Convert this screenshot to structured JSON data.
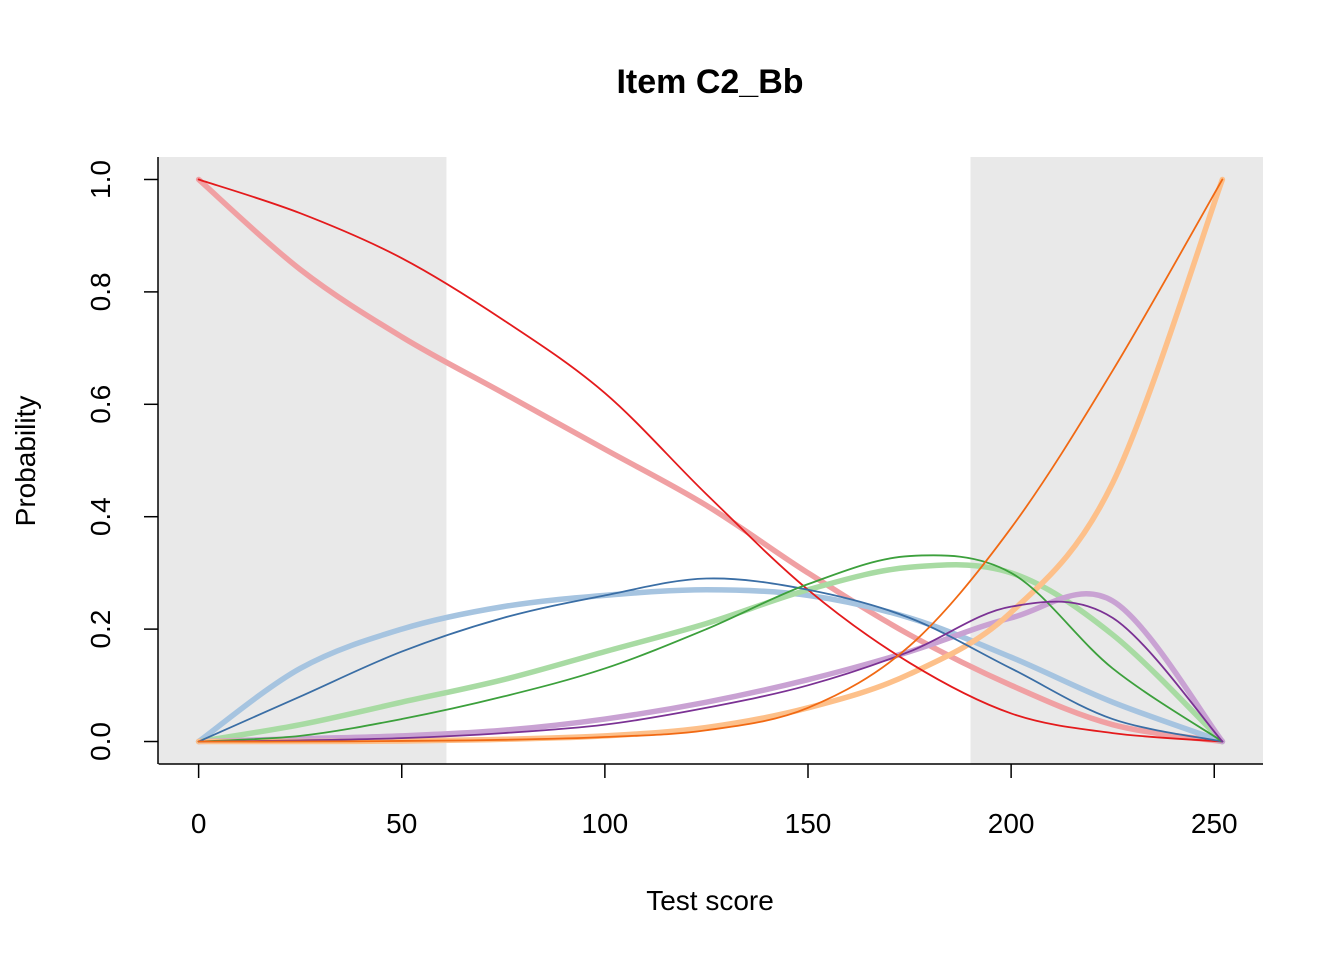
{
  "chart_data": {
    "type": "line",
    "title": "Item C2_Bb",
    "xlabel": "Test score",
    "ylabel": "Probability",
    "xlim": [
      -10,
      262
    ],
    "ylim": [
      -0.04,
      1.04
    ],
    "x_ticks": [
      0,
      50,
      100,
      150,
      200,
      250
    ],
    "y_ticks": [
      0.0,
      0.2,
      0.4,
      0.6,
      0.8,
      1.0
    ],
    "x_tick_labels": [
      "0",
      "50",
      "100",
      "150",
      "200",
      "250"
    ],
    "y_tick_labels": [
      "0.0",
      "0.2",
      "0.4",
      "0.6",
      "0.8",
      "1.0"
    ],
    "grid": false,
    "legend": "none",
    "shaded_regions": [
      {
        "x_range": [
          -10,
          61
        ],
        "color": "#e9e9e9"
      },
      {
        "x_range": [
          190,
          262
        ],
        "color": "#e9e9e9"
      }
    ],
    "x": [
      0,
      25,
      50,
      75,
      100,
      125,
      150,
      175,
      200,
      225,
      252
    ],
    "series": [
      {
        "color": "#f0a0a3",
        "style": "thick",
        "values": [
          1.0,
          0.84,
          0.72,
          0.62,
          0.52,
          0.42,
          0.3,
          0.19,
          0.1,
          0.03,
          0.0
        ]
      },
      {
        "color": "#e41a1c",
        "style": "thin",
        "values": [
          1.0,
          0.94,
          0.86,
          0.75,
          0.62,
          0.44,
          0.27,
          0.14,
          0.05,
          0.015,
          0.0
        ]
      },
      {
        "color": "#a6c4e0",
        "style": "thick",
        "values": [
          0.0,
          0.13,
          0.2,
          0.24,
          0.26,
          0.27,
          0.26,
          0.22,
          0.15,
          0.07,
          0.0
        ]
      },
      {
        "color": "#3a6ea5",
        "style": "thin",
        "values": [
          0.0,
          0.08,
          0.16,
          0.22,
          0.26,
          0.29,
          0.27,
          0.22,
          0.13,
          0.04,
          0.0
        ]
      },
      {
        "color": "#a8dba3",
        "style": "thick",
        "values": [
          0.0,
          0.03,
          0.07,
          0.11,
          0.16,
          0.21,
          0.27,
          0.31,
          0.3,
          0.19,
          0.0
        ]
      },
      {
        "color": "#3ca03c",
        "style": "thin",
        "values": [
          0.0,
          0.01,
          0.04,
          0.08,
          0.13,
          0.2,
          0.28,
          0.33,
          0.3,
          0.13,
          0.0
        ]
      },
      {
        "color": "#c9a2d3",
        "style": "thick",
        "values": [
          0.0,
          0.005,
          0.01,
          0.02,
          0.04,
          0.07,
          0.11,
          0.16,
          0.22,
          0.25,
          0.0
        ]
      },
      {
        "color": "#7b3294",
        "style": "thin",
        "values": [
          0.0,
          0.002,
          0.006,
          0.015,
          0.03,
          0.06,
          0.1,
          0.16,
          0.24,
          0.22,
          0.0
        ]
      },
      {
        "color": "#fdc08a",
        "style": "thick",
        "values": [
          0.0,
          0.0,
          0.001,
          0.004,
          0.01,
          0.025,
          0.06,
          0.12,
          0.23,
          0.46,
          1.0
        ]
      },
      {
        "color": "#f16913",
        "style": "thin",
        "values": [
          0.0,
          0.0,
          0.001,
          0.003,
          0.008,
          0.02,
          0.06,
          0.17,
          0.38,
          0.66,
          1.0
        ]
      }
    ]
  }
}
